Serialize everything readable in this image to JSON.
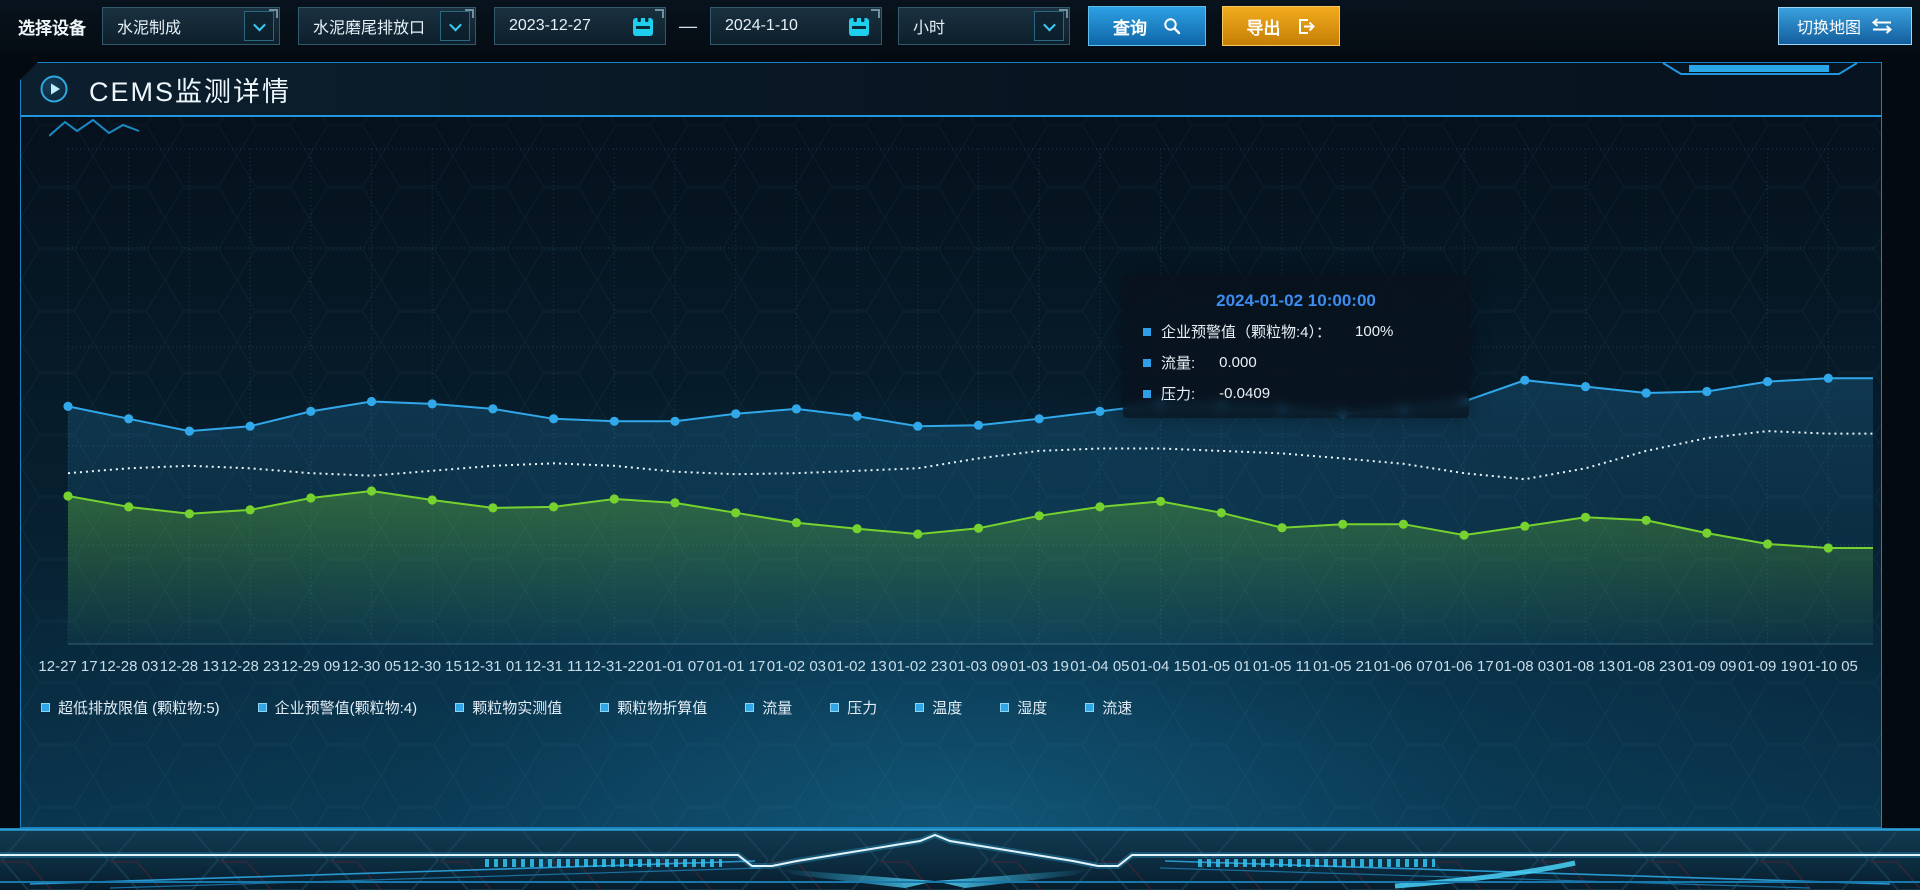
{
  "toolbar": {
    "device_label": "选择设备",
    "device_value": "水泥制成",
    "outlet_value": "水泥磨尾排放口",
    "date_start": "2023-12-27",
    "range_separator": "—",
    "date_end": "2024-1-10",
    "interval_value": "小时",
    "query": "查询",
    "export": "导出",
    "switch_map": "切换地图"
  },
  "panel": {
    "title": "CEMS监测详情"
  },
  "tooltip": {
    "title": "2024-01-02 10:00:00",
    "rows": [
      {
        "label": "企业预警值（颗粒物:4）：",
        "value": "100%"
      },
      {
        "label": "流量:",
        "value": "0.000"
      },
      {
        "label": "压力:",
        "value": "-0.0409"
      }
    ]
  },
  "legend": {
    "items": [
      "超低排放限值 (颗粒物:5)",
      "企业预警值(颗粒物:4)",
      "颗粒物实测值",
      "颗粒物折算值",
      "流量",
      "压力",
      "温度",
      "湿度",
      "流速"
    ]
  },
  "chart_data": {
    "type": "line",
    "title": "CEMS监测详情",
    "xlabel": "",
    "ylabel": "",
    "y_axis_visible": false,
    "grid": true,
    "legend_position": "bottom",
    "ylim": [
      0,
      100
    ],
    "categories": [
      "12-27 17",
      "12-28 03",
      "12-28 13",
      "12-28 23",
      "12-29 09",
      "12-30 05",
      "12-30 15",
      "12-31 01",
      "12-31 11",
      "12-31-22",
      "01-01 07",
      "01-01 17",
      "01-02 03",
      "01-02 13",
      "01-02 23",
      "01-03 09",
      "01-03 19",
      "01-04 05",
      "01-04 15",
      "01-05 01",
      "01-05 11",
      "01-05 21",
      "01-06 07",
      "01-06 17",
      "01-08 03",
      "01-08 13",
      "01-08 23",
      "01-09 09",
      "01-09 19",
      "01-10 05"
    ],
    "series": [
      {
        "name": "企业预警值(颗粒物:4)",
        "color": "#31a8ea",
        "dash": null,
        "dots": true,
        "area": "blue",
        "values": [
          48,
          45.5,
          43,
          44,
          47,
          49,
          48.5,
          47.5,
          45.5,
          45,
          45,
          46.5,
          47.5,
          46,
          44,
          44.2,
          45.5,
          47,
          48.5,
          48.2,
          47.5,
          46.5,
          47.5,
          49,
          53.3,
          52,
          50.7,
          51,
          53,
          53.7
        ]
      },
      {
        "name": "流量",
        "color": "#e9f5fa",
        "dash": "2 4",
        "dots": false,
        "area": null,
        "values": [
          34.5,
          35.5,
          36,
          35.5,
          34.5,
          34,
          35,
          36,
          36.5,
          36,
          34.8,
          34.3,
          34.5,
          35,
          35.5,
          37.5,
          39,
          39.5,
          39.5,
          39,
          38.5,
          37.5,
          36.4,
          34.5,
          33.3,
          35.5,
          39,
          41.6,
          43,
          42.5
        ]
      },
      {
        "name": "压力",
        "color": "#76d22e",
        "dash": null,
        "dots": true,
        "area": "green",
        "values": [
          29.9,
          27.7,
          26.3,
          27.1,
          29.5,
          30.9,
          29.1,
          27.5,
          27.7,
          29.3,
          28.5,
          26.5,
          24.5,
          23.3,
          22.2,
          23.4,
          25.9,
          27.7,
          28.8,
          26.5,
          23.5,
          24.2,
          24.2,
          22,
          23.8,
          25.6,
          25,
          22.4,
          20.2,
          19.4
        ]
      }
    ]
  },
  "colors": {
    "accent_blue": "#31a8ea",
    "accent_green": "#76d22e",
    "tooltip_title_blue": "#3f8cf0",
    "export_orange": "#e9a214",
    "panel_border": "#1583c5",
    "axis_label": "#c8dde8"
  }
}
